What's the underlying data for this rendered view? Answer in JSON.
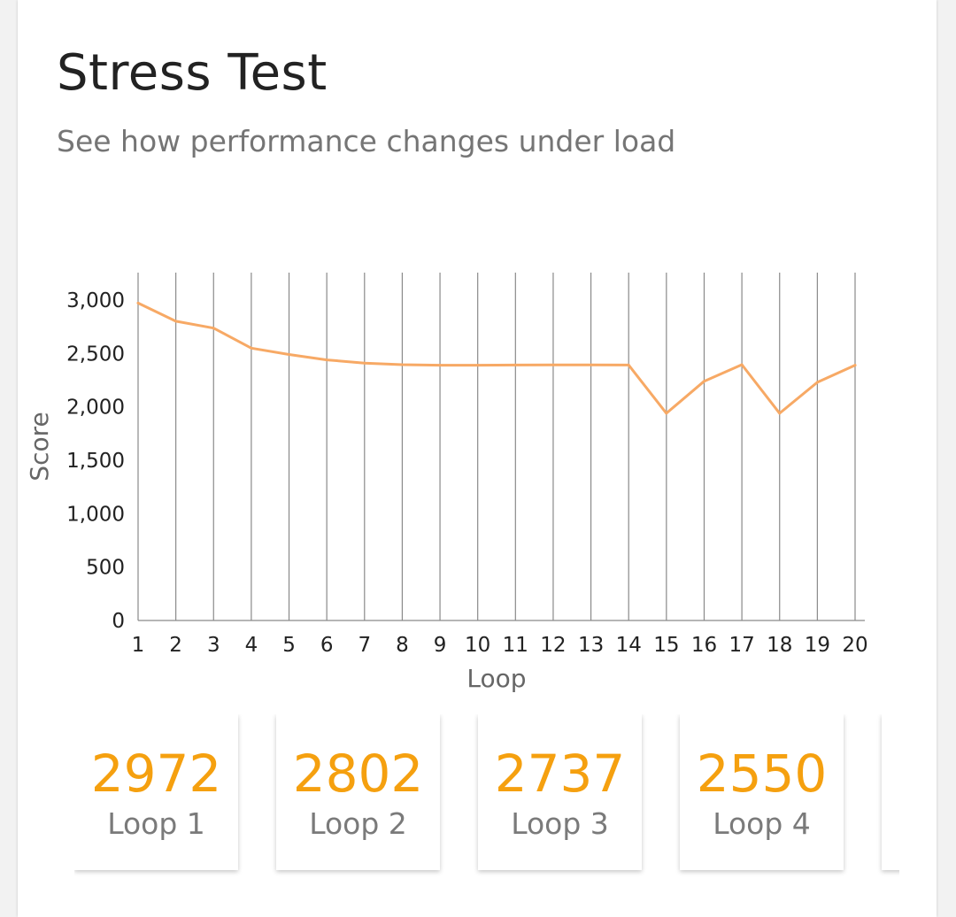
{
  "header": {
    "title": "Stress Test",
    "subtitle": "See how performance changes under load"
  },
  "colors": {
    "line": "#f7a965",
    "accent": "#f5a00f",
    "grid": "#8a8a8a"
  },
  "chart_data": {
    "type": "line",
    "x": [
      1,
      2,
      3,
      4,
      5,
      6,
      7,
      8,
      9,
      10,
      11,
      12,
      13,
      14,
      15,
      16,
      17,
      18,
      19,
      20
    ],
    "series": [
      {
        "values": [
          2972,
          2802,
          2737,
          2550,
          2490,
          2440,
          2410,
          2395,
          2390,
          2390,
          2392,
          2393,
          2393,
          2392,
          1940,
          2240,
          2395,
          1940,
          2230,
          2390
        ]
      }
    ],
    "xlabel": "Loop",
    "ylabel": "Score",
    "xticks": [
      "1",
      "2",
      "3",
      "4",
      "5",
      "6",
      "7",
      "8",
      "9",
      "10",
      "11",
      "12",
      "13",
      "14",
      "15",
      "16",
      "17",
      "18",
      "19",
      "20"
    ],
    "yticks": [
      "0",
      "500",
      "1,000",
      "1,500",
      "2,000",
      "2,500",
      "3,000"
    ],
    "ylim": [
      0,
      3000
    ],
    "grid": "vertical"
  },
  "tiles": [
    {
      "value": "2972",
      "label": "Loop 1"
    },
    {
      "value": "2802",
      "label": "Loop 2"
    },
    {
      "value": "2737",
      "label": "Loop 3"
    },
    {
      "value": "2550",
      "label": "Loop 4"
    },
    {
      "value": "",
      "label": ""
    }
  ]
}
